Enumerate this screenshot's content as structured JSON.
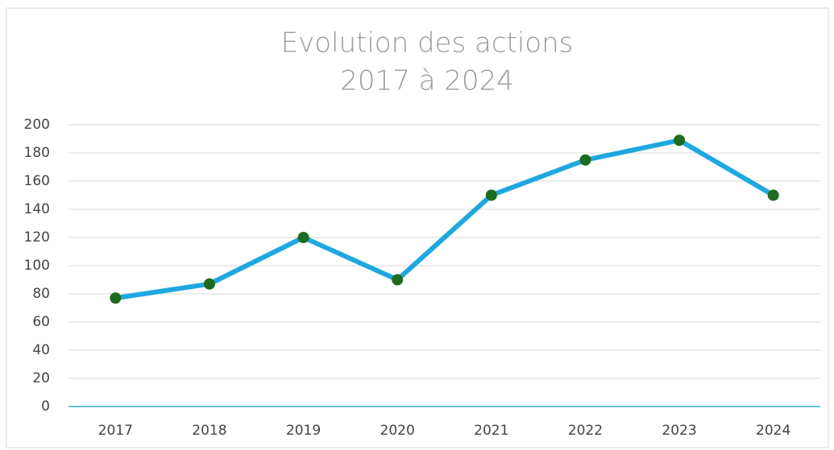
{
  "chart_data": {
    "type": "line",
    "title": "Evolution des actions",
    "subtitle": "2017 à 2024",
    "categories": [
      "2017",
      "2018",
      "2019",
      "2020",
      "2021",
      "2022",
      "2023",
      "2024"
    ],
    "series": [
      {
        "color": "#1fa8e0",
        "marker_color": "#1e6a1e",
        "values": [
          77,
          87,
          120,
          90,
          150,
          175,
          189,
          150
        ]
      }
    ],
    "ylim": [
      0,
      200
    ],
    "yticks": [
      0,
      20,
      40,
      60,
      80,
      100,
      120,
      140,
      160,
      180,
      200
    ],
    "grid": true
  }
}
